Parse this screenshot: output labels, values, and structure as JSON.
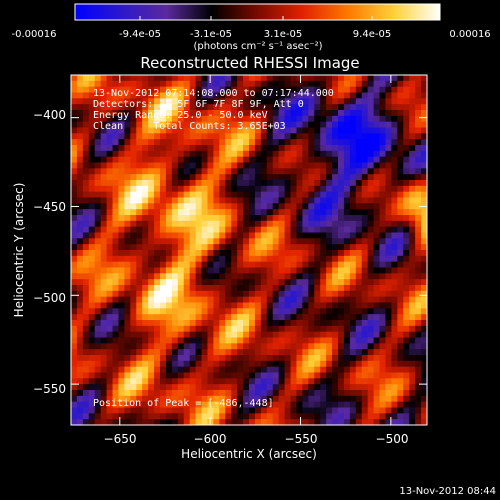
{
  "colorbar": {
    "tick_labels": [
      "-0.00016",
      "-9.4e-05",
      "-3.1e-05",
      "3.1e-05",
      "9.4e-05",
      "0.00016"
    ],
    "unit_label": "(photons cm⁻² s⁻¹ asec⁻²)",
    "colors": [
      "#0000ff",
      "#2b18cc",
      "#5a2a9e",
      "#000000",
      "#7a0a00",
      "#e22200",
      "#ff7a00",
      "#ffd23a",
      "#ffffff"
    ]
  },
  "annotations": {
    "time_range": "13-Nov-2012 07:14:08.000 to 07:17:44.000",
    "detectors": "Detectors: 3F 5F 6F 7F 8F 9F, Att 0",
    "energy": "Energy Range: 25.0 - 50.0 keV",
    "clean": "Clean     Total Counts: 3.65E+03",
    "peak": "Position of Peak = [-486,-448]"
  },
  "footer": {
    "timestamp": "13-Nov-2012 08:44"
  },
  "chart_data": {
    "type": "heatmap",
    "title": "Reconstructed RHESSI Image",
    "xlabel": "Heliocentric X (arcsec)",
    "ylabel": "Heliocentric Y (arcsec)",
    "xlim": [
      -677,
      -480
    ],
    "ylim": [
      -573,
      -376
    ],
    "x_ticks": [
      -650,
      -600,
      -550,
      -500
    ],
    "y_ticks": [
      -400,
      -450,
      -500,
      -550
    ],
    "x_tick_labels": [
      "−650",
      "−600",
      "−550",
      "−500"
    ],
    "y_tick_labels": [
      "−400",
      "−450",
      "−500",
      "−550"
    ],
    "value_range": [
      -0.00016,
      0.00016
    ],
    "peak_position": [
      -486,
      -448
    ]
  }
}
